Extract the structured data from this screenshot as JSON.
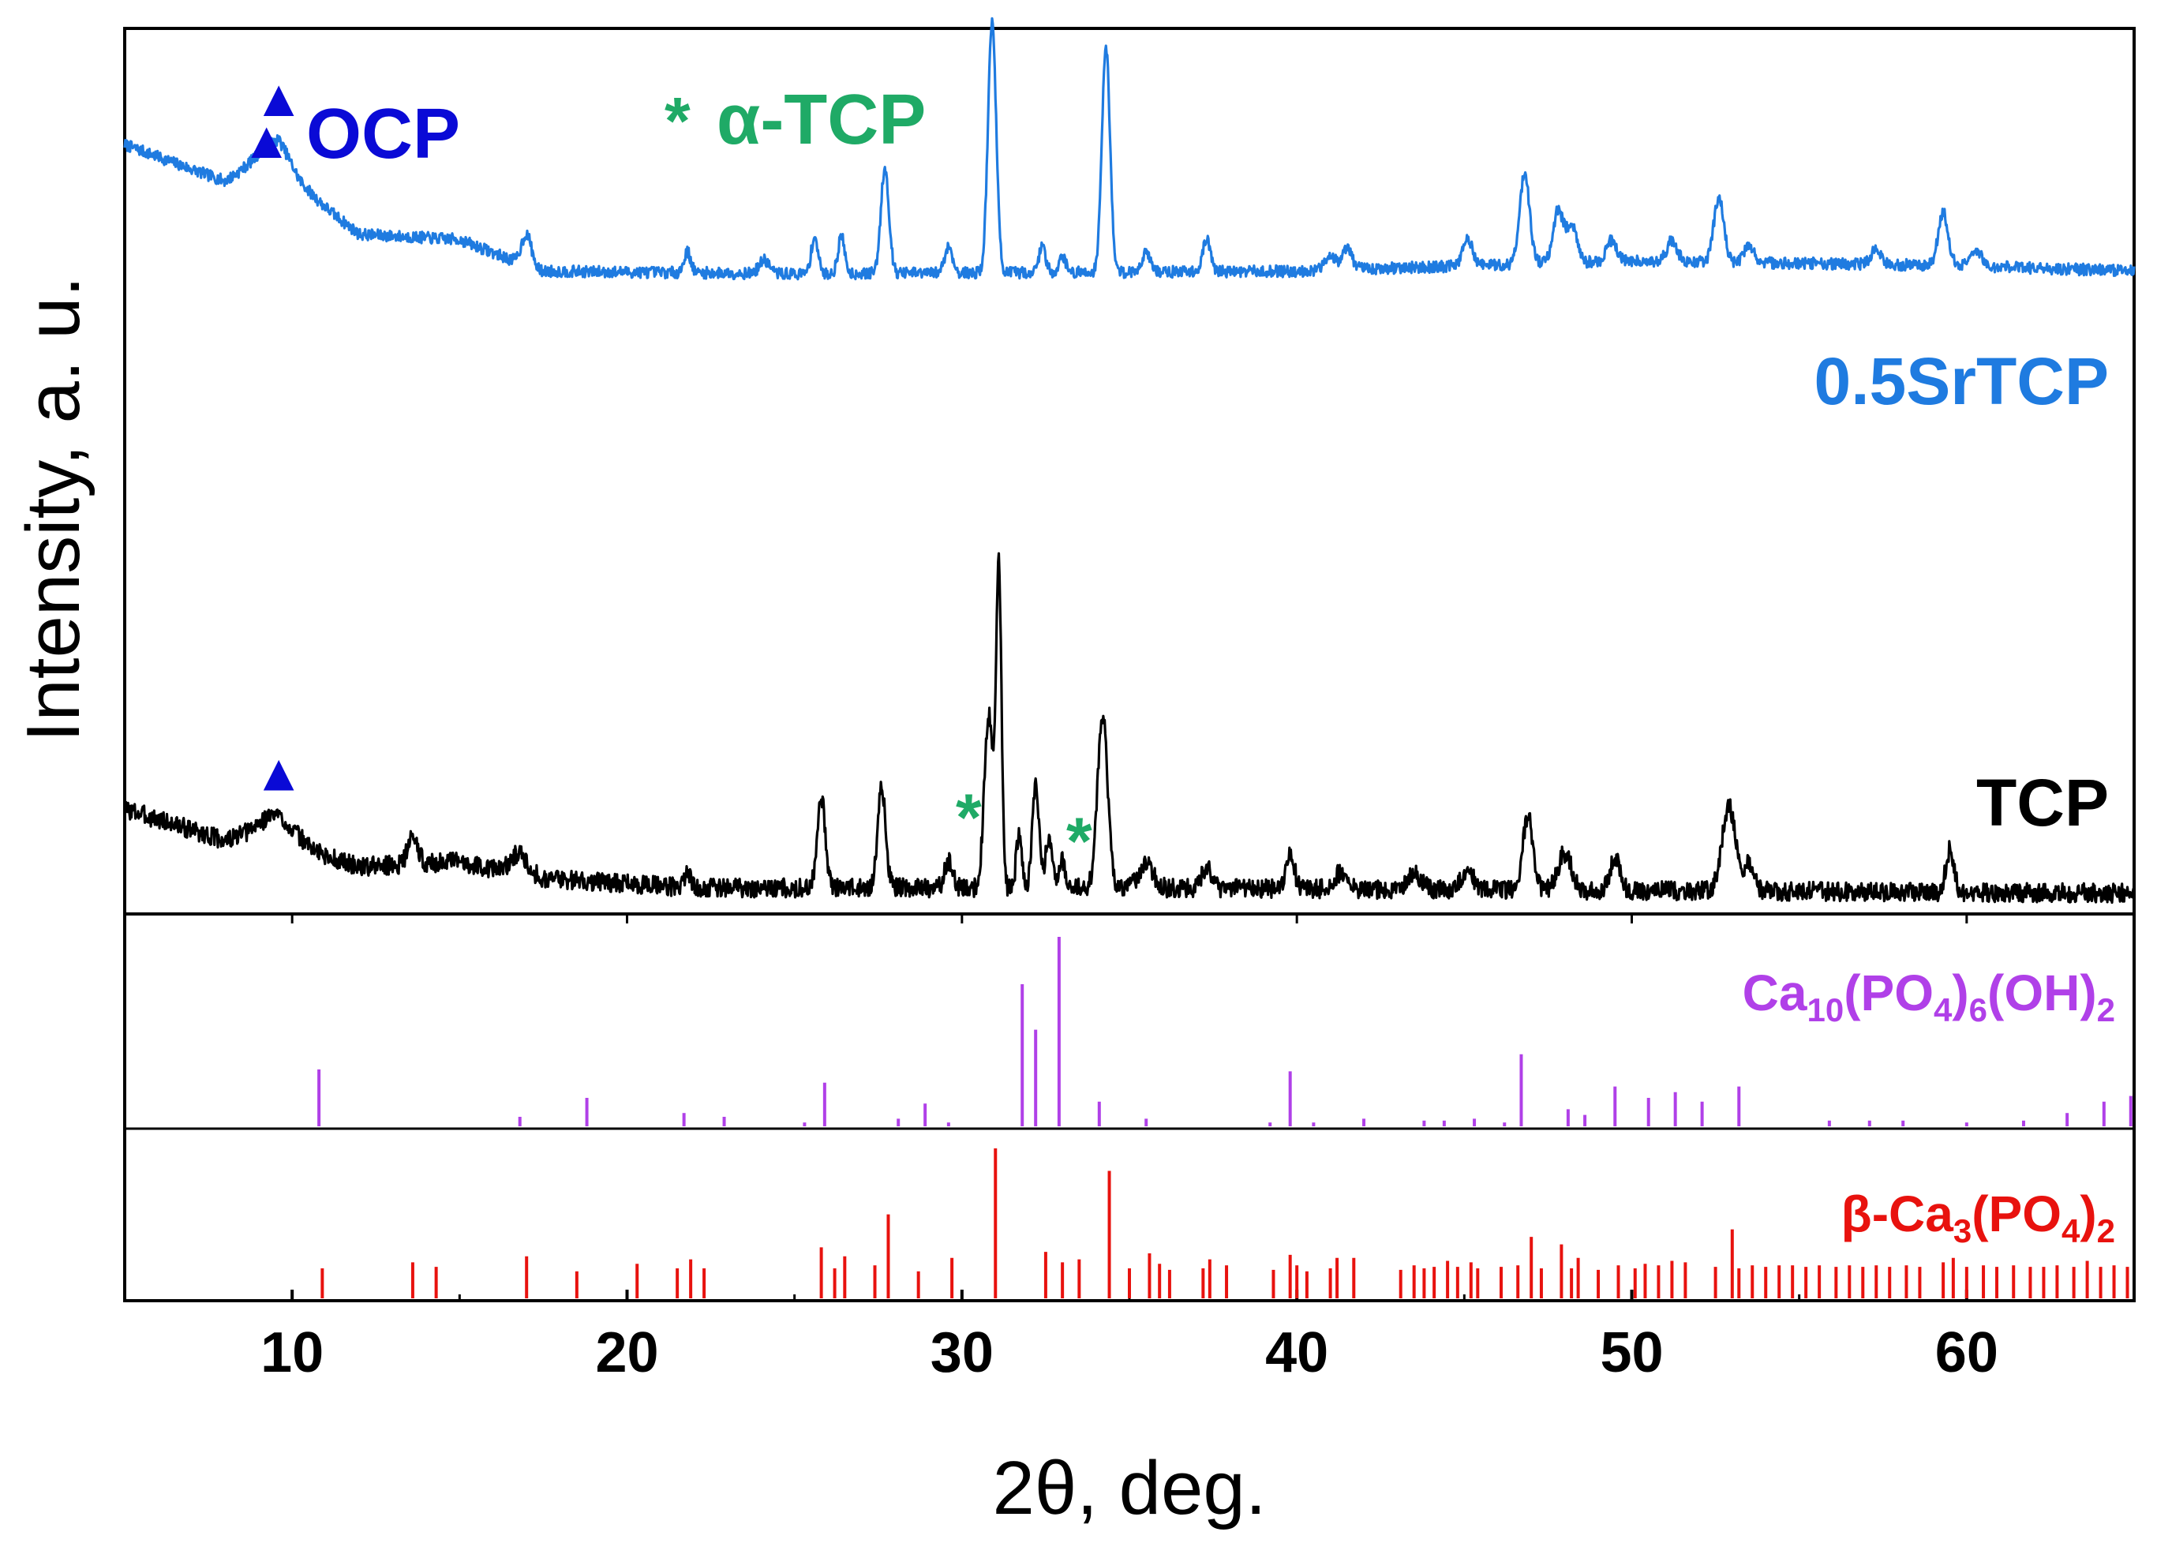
{
  "chart_data": {
    "type": "line",
    "title": "",
    "xlabel": "2θ, deg.",
    "ylabel": "Intensity, a. u.",
    "xlim": [
      5,
      65
    ],
    "x_ticks": [
      10,
      20,
      30,
      40,
      50,
      60
    ],
    "x_tick_labels": [
      "10",
      "20",
      "30",
      "40",
      "50",
      "60"
    ],
    "grid": false,
    "legend": [
      {
        "marker": "▲",
        "label": "OCP",
        "color": "#0a0ad6"
      },
      {
        "marker": "*",
        "label": "α-TCP",
        "color": "#1faa66"
      }
    ],
    "patterns": [
      {
        "name": "0.5SrTCP",
        "color": "#1f7be0",
        "offset": 118,
        "noise": 0.55,
        "seed": 7,
        "baseline": [
          [
            5,
            26
          ],
          [
            8,
            19
          ],
          [
            9.6,
            24
          ],
          [
            10.2,
            18
          ],
          [
            12,
            9
          ],
          [
            15,
            8
          ],
          [
            17.4,
            2
          ],
          [
            25,
            1.5
          ],
          [
            40,
            2
          ],
          [
            50,
            4
          ],
          [
            60,
            3
          ],
          [
            65,
            2
          ]
        ],
        "peaks": [
          [
            9.5,
            3,
            0.6
          ],
          [
            17,
            6,
            0.15
          ],
          [
            21.8,
            4,
            0.1
          ],
          [
            24.1,
            2.5,
            0.15
          ],
          [
            25.6,
            7,
            0.1
          ],
          [
            26.4,
            7,
            0.1
          ],
          [
            27.7,
            20,
            0.12
          ],
          [
            29.6,
            5,
            0.12
          ],
          [
            30.9,
            48,
            0.12
          ],
          [
            32.4,
            5,
            0.1
          ],
          [
            33.0,
            3,
            0.1
          ],
          [
            34.3,
            43,
            0.12
          ],
          [
            35.5,
            4,
            0.12
          ],
          [
            37.3,
            6,
            0.12
          ],
          [
            41.0,
            3,
            0.15
          ],
          [
            41.5,
            4,
            0.15
          ],
          [
            45.1,
            5,
            0.15
          ],
          [
            46.8,
            17,
            0.15
          ],
          [
            47.8,
            10,
            0.15
          ],
          [
            48.2,
            7,
            0.15
          ],
          [
            49.4,
            4,
            0.15
          ],
          [
            51.2,
            4,
            0.15
          ],
          [
            52.6,
            12,
            0.15
          ],
          [
            53.5,
            3,
            0.15
          ],
          [
            57.3,
            3,
            0.15
          ],
          [
            59.3,
            10,
            0.15
          ],
          [
            60.3,
            3,
            0.15
          ]
        ]
      },
      {
        "name": "TCP",
        "color": "#000000",
        "offset": 0,
        "noise": 0.9,
        "seed": 3,
        "baseline": [
          [
            5,
            18
          ],
          [
            8,
            12
          ],
          [
            9.5,
            14
          ],
          [
            11,
            9
          ],
          [
            12,
            7
          ],
          [
            15,
            8
          ],
          [
            17.2,
            5
          ],
          [
            22,
            3
          ],
          [
            35,
            3
          ],
          [
            65,
            2
          ]
        ],
        "peaks": [
          [
            9.5,
            3,
            0.5
          ],
          [
            13.6,
            5,
            0.15
          ],
          [
            16.8,
            4,
            0.25
          ],
          [
            21.8,
            3,
            0.1
          ],
          [
            25.8,
            17,
            0.12
          ],
          [
            27.6,
            19,
            0.12
          ],
          [
            29.6,
            5,
            0.12
          ],
          [
            30.8,
            33,
            0.13
          ],
          [
            31.1,
            60,
            0.08
          ],
          [
            31.7,
            10,
            0.08
          ],
          [
            32.2,
            20,
            0.1
          ],
          [
            32.6,
            10,
            0.1
          ],
          [
            33.0,
            5,
            0.1
          ],
          [
            34.2,
            33,
            0.15
          ],
          [
            35.5,
            5,
            0.2
          ],
          [
            37.3,
            4,
            0.15
          ],
          [
            39.8,
            7,
            0.12
          ],
          [
            41.3,
            3,
            0.2
          ],
          [
            43.5,
            3,
            0.2
          ],
          [
            45.1,
            3,
            0.2
          ],
          [
            46.9,
            14,
            0.15
          ],
          [
            48.0,
            7,
            0.2
          ],
          [
            49.5,
            6,
            0.15
          ],
          [
            52.9,
            16,
            0.2
          ],
          [
            53.5,
            5,
            0.15
          ],
          [
            59.5,
            8,
            0.12
          ]
        ]
      }
    ],
    "references": [
      {
        "name": "Ca10(PO4)6(OH)2",
        "color": "#b040e8",
        "panel_max": 100,
        "lines": [
          [
            10.8,
            30
          ],
          [
            16.8,
            5
          ],
          [
            18.8,
            15
          ],
          [
            21.7,
            7
          ],
          [
            22.9,
            5
          ],
          [
            25.3,
            2
          ],
          [
            25.9,
            23
          ],
          [
            28.1,
            4
          ],
          [
            28.9,
            12
          ],
          [
            29.6,
            2
          ],
          [
            31.8,
            75
          ],
          [
            32.2,
            51
          ],
          [
            32.9,
            100
          ],
          [
            34.1,
            13
          ],
          [
            35.5,
            4
          ],
          [
            39.2,
            2
          ],
          [
            39.8,
            29
          ],
          [
            40.5,
            2
          ],
          [
            42.0,
            4
          ],
          [
            43.8,
            3
          ],
          [
            44.4,
            3
          ],
          [
            45.3,
            4
          ],
          [
            46.2,
            2
          ],
          [
            46.7,
            38
          ],
          [
            48.1,
            9
          ],
          [
            48.6,
            6
          ],
          [
            49.5,
            21
          ],
          [
            50.5,
            15
          ],
          [
            51.3,
            18
          ],
          [
            52.1,
            13
          ],
          [
            53.2,
            21
          ],
          [
            55.9,
            3
          ],
          [
            57.1,
            3
          ],
          [
            58.1,
            3
          ],
          [
            60.0,
            2
          ],
          [
            61.7,
            3
          ],
          [
            63.0,
            7
          ],
          [
            64.1,
            13
          ],
          [
            64.9,
            16
          ]
        ]
      },
      {
        "name": "β-Ca3(PO4)2",
        "color": "#e8120e",
        "panel_max": 100,
        "lines": [
          [
            10.9,
            20
          ],
          [
            13.6,
            24
          ],
          [
            14.3,
            21
          ],
          [
            17.0,
            28
          ],
          [
            18.5,
            18
          ],
          [
            20.3,
            23
          ],
          [
            21.5,
            20
          ],
          [
            21.9,
            26
          ],
          [
            22.3,
            20
          ],
          [
            25.8,
            34
          ],
          [
            26.2,
            20
          ],
          [
            26.5,
            28
          ],
          [
            27.4,
            22
          ],
          [
            27.8,
            56
          ],
          [
            28.7,
            18
          ],
          [
            29.7,
            27
          ],
          [
            31.0,
            100
          ],
          [
            32.5,
            31
          ],
          [
            33.0,
            24
          ],
          [
            33.5,
            26
          ],
          [
            34.4,
            85
          ],
          [
            35.0,
            20
          ],
          [
            35.6,
            30
          ],
          [
            35.9,
            23
          ],
          [
            36.2,
            19
          ],
          [
            37.2,
            20
          ],
          [
            37.4,
            26
          ],
          [
            37.9,
            22
          ],
          [
            39.3,
            19
          ],
          [
            39.8,
            29
          ],
          [
            40.0,
            22
          ],
          [
            40.3,
            18
          ],
          [
            41.0,
            20
          ],
          [
            41.2,
            27
          ],
          [
            41.7,
            27
          ],
          [
            43.1,
            19
          ],
          [
            43.5,
            22
          ],
          [
            43.8,
            20
          ],
          [
            44.1,
            21
          ],
          [
            44.5,
            25
          ],
          [
            44.8,
            21
          ],
          [
            45.2,
            24
          ],
          [
            45.4,
            20
          ],
          [
            46.1,
            21
          ],
          [
            46.6,
            22
          ],
          [
            47.0,
            41
          ],
          [
            47.3,
            20
          ],
          [
            47.9,
            36
          ],
          [
            48.2,
            20
          ],
          [
            48.4,
            27
          ],
          [
            49.0,
            19
          ],
          [
            49.6,
            22
          ],
          [
            50.1,
            20
          ],
          [
            50.4,
            23
          ],
          [
            50.8,
            22
          ],
          [
            51.2,
            25
          ],
          [
            51.6,
            24
          ],
          [
            52.5,
            21
          ],
          [
            53.0,
            46
          ],
          [
            53.2,
            20
          ],
          [
            53.6,
            22
          ],
          [
            54.0,
            21
          ],
          [
            54.4,
            22
          ],
          [
            54.8,
            22
          ],
          [
            55.2,
            21
          ],
          [
            55.6,
            22
          ],
          [
            56.1,
            21
          ],
          [
            56.5,
            22
          ],
          [
            56.9,
            21
          ],
          [
            57.3,
            22
          ],
          [
            57.7,
            21
          ],
          [
            58.2,
            22
          ],
          [
            58.6,
            21
          ],
          [
            59.3,
            24
          ],
          [
            59.6,
            27
          ],
          [
            60.0,
            21
          ],
          [
            60.5,
            22
          ],
          [
            60.9,
            21
          ],
          [
            61.4,
            22
          ],
          [
            61.9,
            21
          ],
          [
            62.3,
            21
          ],
          [
            62.7,
            22
          ],
          [
            63.2,
            21
          ],
          [
            63.6,
            25
          ],
          [
            64.0,
            21
          ],
          [
            64.4,
            22
          ],
          [
            64.8,
            21
          ]
        ]
      }
    ],
    "annotations": [
      {
        "symbol": "▲",
        "x": 9.6,
        "series": "0.5SrTCP",
        "color": "#0a0ad6"
      },
      {
        "symbol": "▲",
        "x": 9.6,
        "series": "TCP",
        "color": "#0a0ad6"
      },
      {
        "symbol": "*",
        "x": 30.2,
        "series": "TCP",
        "color": "#1faa66"
      },
      {
        "symbol": "*",
        "x": 33.5,
        "series": "TCP",
        "color": "#1faa66"
      }
    ],
    "series_labels": [
      "0.5SrTCP",
      "TCP"
    ],
    "reference_labels": {
      "hap": {
        "base": "Ca",
        "sub1": "10",
        "mid1": "(PO",
        "sub2": "4",
        "mid2": ")",
        "sub3": "6",
        "tail": "(OH)",
        "sub4": "2"
      },
      "btcp": {
        "base": "β-Ca",
        "sub1": "3",
        "mid1": "(PO",
        "sub2": "4",
        "mid2": ")",
        "sub3": "2"
      }
    }
  }
}
